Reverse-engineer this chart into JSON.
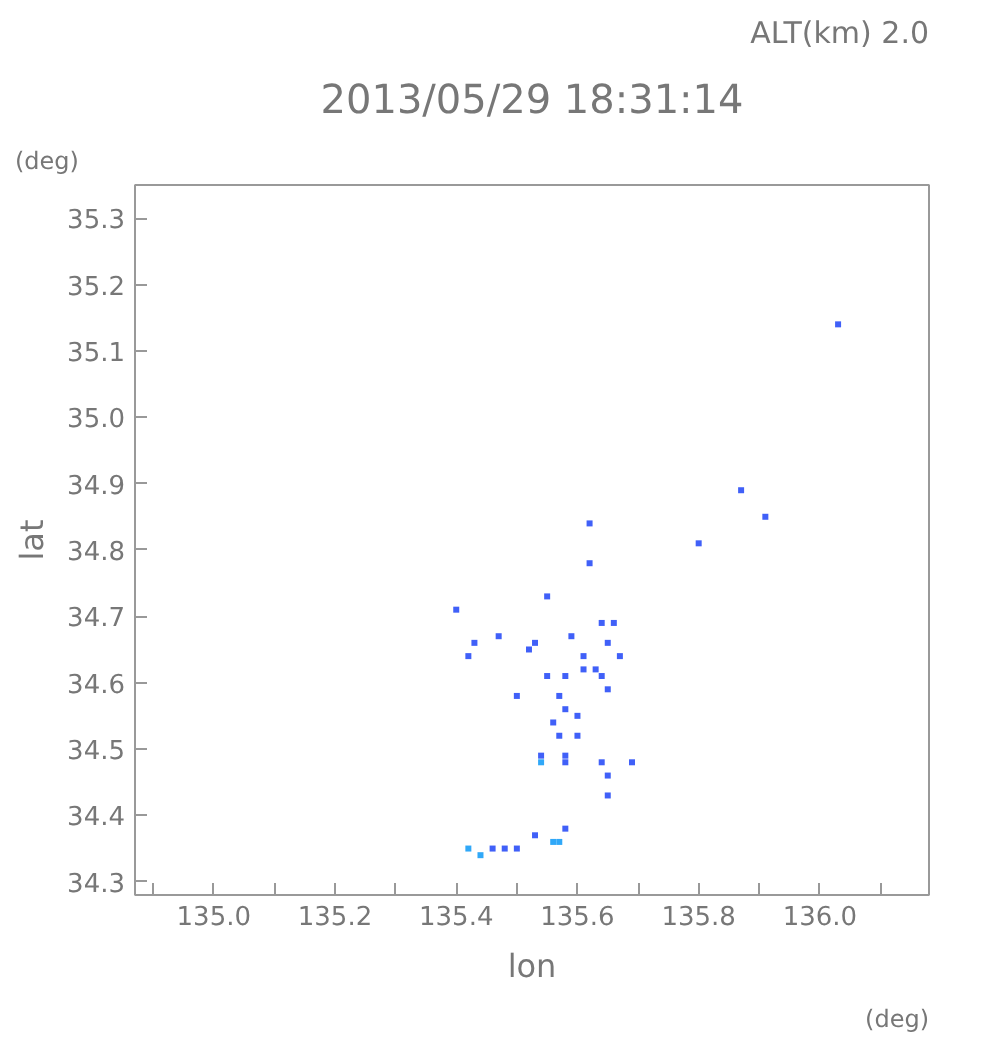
{
  "chart_data": {
    "type": "scatter",
    "title": "2013/05/29 18:31:14",
    "subtitle": "ALT(km) 2.0",
    "xlabel": "lon",
    "ylabel": "lat",
    "annotations": [
      "(deg)",
      "(deg)"
    ],
    "xlim": [
      134.87,
      136.18
    ],
    "ylim": [
      34.28,
      35.35
    ],
    "xticks": [
      {
        "value": 134.9,
        "label": null
      },
      {
        "value": 135.0,
        "label": "135.0"
      },
      {
        "value": 135.1,
        "label": null
      },
      {
        "value": 135.2,
        "label": "135.2"
      },
      {
        "value": 135.3,
        "label": null
      },
      {
        "value": 135.4,
        "label": "135.4"
      },
      {
        "value": 135.5,
        "label": null
      },
      {
        "value": 135.6,
        "label": "135.6"
      },
      {
        "value": 135.7,
        "label": null
      },
      {
        "value": 135.8,
        "label": "135.8"
      },
      {
        "value": 135.9,
        "label": null
      },
      {
        "value": 136.0,
        "label": "136.0"
      },
      {
        "value": 136.1,
        "label": null
      }
    ],
    "yticks": [
      {
        "value": 34.3,
        "label": "34.3"
      },
      {
        "value": 34.4,
        "label": "34.4"
      },
      {
        "value": 34.5,
        "label": "34.5"
      },
      {
        "value": 34.6,
        "label": "34.6"
      },
      {
        "value": 34.7,
        "label": "34.7"
      },
      {
        "value": 34.8,
        "label": "34.8"
      },
      {
        "value": 34.9,
        "label": "34.9"
      },
      {
        "value": 35.0,
        "label": "35.0"
      },
      {
        "value": 35.1,
        "label": "35.1"
      },
      {
        "value": 35.2,
        "label": "35.2"
      },
      {
        "value": 35.3,
        "label": "35.3"
      }
    ],
    "grid": false,
    "marker": "square",
    "series": [
      {
        "color": "#4060f8",
        "x": [
          136.03,
          135.91,
          135.87,
          135.8,
          135.62,
          135.62,
          135.55,
          135.4,
          135.43,
          135.47,
          135.42,
          135.52,
          135.53,
          135.59,
          135.66,
          135.64,
          135.65,
          135.67,
          135.61,
          135.63,
          135.64,
          135.61,
          135.55,
          135.58,
          135.5,
          135.57,
          135.58,
          135.6,
          135.56,
          135.65,
          135.57,
          135.6,
          135.54,
          135.58,
          135.58,
          135.64,
          135.65,
          135.69,
          135.65,
          135.53,
          135.58,
          135.48,
          135.46,
          135.5
        ],
        "values": [
          35.14,
          34.85,
          34.89,
          34.81,
          34.84,
          34.78,
          34.73,
          34.71,
          34.66,
          34.67,
          34.64,
          34.65,
          34.66,
          34.67,
          34.69,
          34.69,
          34.66,
          34.64,
          34.64,
          34.62,
          34.61,
          34.62,
          34.61,
          34.61,
          34.58,
          34.58,
          34.56,
          34.55,
          34.54,
          34.59,
          34.52,
          34.52,
          34.49,
          34.49,
          34.48,
          34.48,
          34.46,
          34.48,
          34.43,
          34.37,
          34.38,
          34.35,
          34.35,
          34.35
        ]
      },
      {
        "color": "#30a8f8",
        "x": [
          135.54,
          135.44,
          135.42,
          135.56,
          135.57
        ],
        "values": [
          34.48,
          34.34,
          34.35,
          34.36,
          34.36
        ]
      }
    ]
  }
}
